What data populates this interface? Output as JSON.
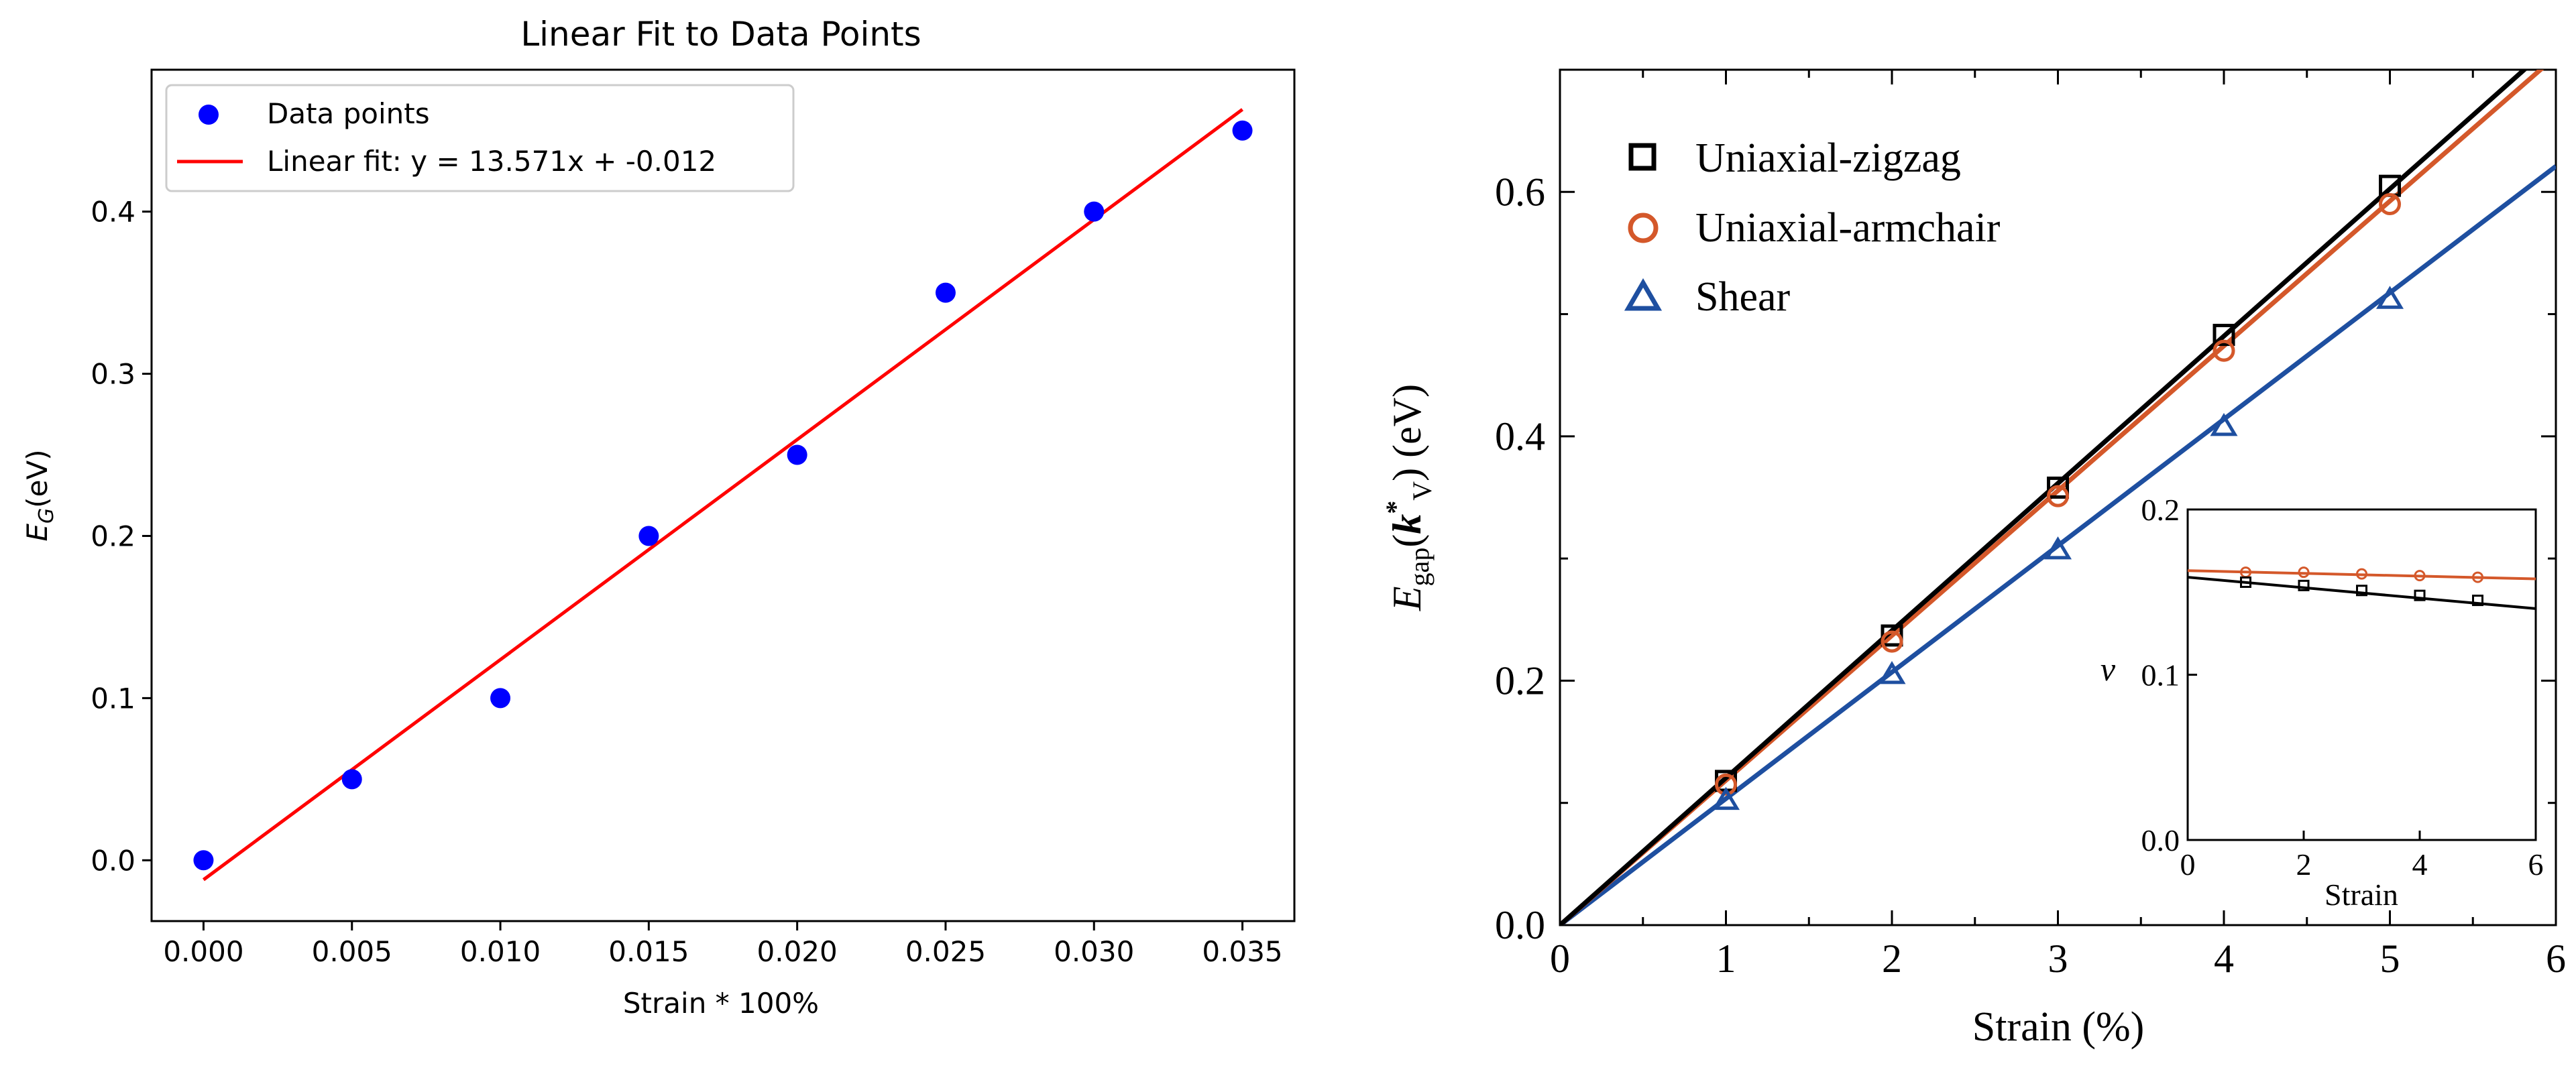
{
  "left_chart": {
    "chart_data": {
      "type": "scatter",
      "title": "Linear Fit to Data Points",
      "xlabel": "Strain * 100%",
      "ylabel_main": "E",
      "ylabel_sub": "G",
      "ylabel_unit": "(eV)",
      "xlim": [
        -0.00175,
        0.03675
      ],
      "ylim": [
        -0.0375,
        0.4875
      ],
      "xticks": [
        0.0,
        0.005,
        0.01,
        0.015,
        0.02,
        0.025,
        0.03,
        0.035
      ],
      "xtick_labels": [
        "0.000",
        "0.005",
        "0.010",
        "0.015",
        "0.020",
        "0.025",
        "0.030",
        "0.035"
      ],
      "yticks": [
        0.0,
        0.1,
        0.2,
        0.3,
        0.4
      ],
      "ytick_labels": [
        "0.0",
        "0.1",
        "0.2",
        "0.3",
        "0.4"
      ],
      "series": [
        {
          "name": "Data points",
          "kind": "scatter",
          "color": "#0000ff",
          "x": [
            0.0,
            0.005,
            0.01,
            0.015,
            0.02,
            0.025,
            0.03,
            0.035
          ],
          "y": [
            0.0,
            0.05,
            0.1,
            0.2,
            0.25,
            0.35,
            0.4,
            0.45
          ]
        },
        {
          "name": "Linear fit: y = 13.571x + -0.012",
          "kind": "line",
          "color": "#ff0000",
          "slope": 13.571,
          "intercept": -0.012,
          "x_range": [
            0.0,
            0.035
          ]
        }
      ],
      "legend_position": "top-left",
      "grid": false
    }
  },
  "right_chart": {
    "chart_data": {
      "type": "line",
      "xlabel": "Strain (%)",
      "ylabel_main": "E",
      "ylabel_sub": "gap",
      "ylabel_k": "k",
      "ylabel_k_sup": "*",
      "ylabel_k_sub": "V",
      "ylabel_unit": ") (eV)",
      "ylabel_open": "(",
      "xlim": [
        0,
        6
      ],
      "ylim": [
        0,
        0.7
      ],
      "xticks": [
        0,
        1,
        2,
        3,
        4,
        5,
        6
      ],
      "xtick_labels": [
        "0",
        "1",
        "2",
        "3",
        "4",
        "5",
        "6"
      ],
      "yticks": [
        0.0,
        0.2,
        0.4,
        0.6
      ],
      "ytick_labels": [
        "0.0",
        "0.2",
        "0.4",
        "0.6"
      ],
      "series": [
        {
          "name": "Uniaxial-zigzag",
          "marker": "square",
          "color": "#000000",
          "x": [
            1,
            2,
            3,
            4,
            5
          ],
          "y": [
            0.118,
            0.237,
            0.358,
            0.483,
            0.605
          ],
          "fit_slope": 0.1205
        },
        {
          "name": "Uniaxial-armchair",
          "marker": "circle",
          "color": "#d4582a",
          "x": [
            1,
            2,
            3,
            4,
            5
          ],
          "y": [
            0.115,
            0.232,
            0.351,
            0.47,
            0.59
          ],
          "fit_slope": 0.1185
        },
        {
          "name": "Shear",
          "marker": "triangle",
          "color": "#1e4fa0",
          "x": [
            1,
            2,
            3,
            4,
            5
          ],
          "y": [
            0.102,
            0.205,
            0.307,
            0.408,
            0.512
          ],
          "fit_slope": 0.1035
        }
      ],
      "legend_position": "top-left",
      "grid": false
    },
    "inset_chart_data": {
      "type": "line",
      "xlabel": "Strain",
      "ylabel": "ν",
      "xlim": [
        0,
        6
      ],
      "ylim": [
        0,
        0.2
      ],
      "xticks": [
        0,
        2,
        4,
        6
      ],
      "xtick_labels": [
        "0",
        "2",
        "4",
        "6"
      ],
      "yticks": [
        0.0,
        0.1,
        0.2
      ],
      "ytick_labels": [
        "0.0",
        "0.1",
        "0.2"
      ],
      "series": [
        {
          "name": "Uniaxial-armchair",
          "marker": "circle",
          "color": "#d4582a",
          "x": [
            1,
            2,
            3,
            4,
            5
          ],
          "y": [
            0.162,
            0.162,
            0.161,
            0.16,
            0.159
          ],
          "fit": [
            0.163,
            0.158
          ]
        },
        {
          "name": "Uniaxial-zigzag",
          "marker": "square",
          "color": "#000000",
          "x": [
            1,
            2,
            3,
            4,
            5
          ],
          "y": [
            0.156,
            0.154,
            0.151,
            0.148,
            0.145
          ],
          "fit": [
            0.159,
            0.14
          ]
        }
      ]
    }
  }
}
